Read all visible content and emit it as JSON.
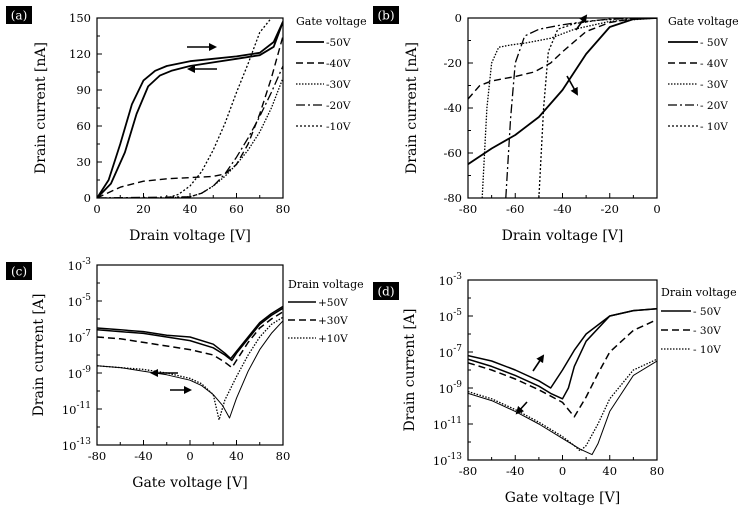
{
  "figure": {
    "panels": [
      "a",
      "b",
      "c",
      "d"
    ]
  },
  "chart_data": [
    {
      "id": "a",
      "type": "line",
      "label": "(a)",
      "xlabel": "Drain voltage [V]",
      "ylabel": "Drain current [nA]",
      "xlim": [
        0,
        80
      ],
      "ylim": [
        0,
        150
      ],
      "x_ticks": [
        0,
        20,
        40,
        60,
        80
      ],
      "y_ticks": [
        0,
        30,
        60,
        90,
        120,
        150
      ],
      "legend": {
        "title": "Gate voltage",
        "position": "right"
      },
      "scale": "linear",
      "series": [
        {
          "name": "-50V",
          "dash": "solid",
          "width": 1.8,
          "color": "#000000",
          "x": [
            0,
            5,
            10,
            15,
            20,
            25,
            30,
            40,
            50,
            60,
            70,
            76,
            80
          ],
          "y": [
            0,
            15,
            45,
            78,
            98,
            106,
            110,
            114,
            116,
            118,
            121,
            130,
            147
          ]
        },
        {
          "name": "-50V",
          "dash": "solid",
          "width": 1.8,
          "color": "#000000",
          "x": [
            0,
            6,
            12,
            17,
            22,
            27,
            32,
            40,
            50,
            60,
            70,
            76,
            80
          ],
          "y": [
            0,
            12,
            38,
            70,
            93,
            102,
            106,
            110,
            113,
            116,
            119,
            126,
            147
          ]
        },
        {
          "name": "-40V",
          "dash": "7,4",
          "width": 1.4,
          "color": "#000000",
          "x": [
            0,
            10,
            20,
            30,
            40,
            50,
            55,
            60,
            65,
            70,
            75,
            80
          ],
          "y": [
            0,
            9,
            14,
            16,
            17,
            18,
            20,
            28,
            45,
            70,
            100,
            135
          ]
        },
        {
          "name": "-30V",
          "dash": "1.5,1.5",
          "width": 1.3,
          "color": "#000000",
          "x": [
            0,
            30,
            40,
            45,
            50,
            55,
            60,
            65,
            70,
            75,
            80
          ],
          "y": [
            0,
            0,
            1,
            4,
            10,
            18,
            28,
            40,
            55,
            75,
            100
          ]
        },
        {
          "name": "-20V",
          "dash": "9,3,2,3",
          "width": 1.3,
          "color": "#000000",
          "x": [
            0,
            40,
            45,
            50,
            55,
            60,
            65,
            70,
            75,
            80
          ],
          "y": [
            0,
            1,
            4,
            10,
            20,
            34,
            50,
            68,
            88,
            110
          ]
        },
        {
          "name": "-10V",
          "dash": "2,2",
          "width": 1.3,
          "color": "#000000",
          "x": [
            0,
            30,
            35,
            40,
            45,
            50,
            55,
            60,
            65,
            70,
            75
          ],
          "y": [
            0,
            0,
            3,
            10,
            22,
            40,
            62,
            88,
            112,
            138,
            150
          ]
        }
      ]
    },
    {
      "id": "b",
      "type": "line",
      "label": "(b)",
      "xlabel": "Drain voltage [V]",
      "ylabel": "Drain current [nA]",
      "xlim": [
        -80,
        0
      ],
      "ylim": [
        -80,
        0
      ],
      "x_ticks": [
        -80,
        -60,
        -40,
        -20,
        0
      ],
      "y_ticks": [
        -80,
        -60,
        -40,
        -20,
        0
      ],
      "legend": {
        "title": "Gate voltage",
        "position": "right"
      },
      "scale": "linear",
      "series": [
        {
          "name": "- 50V",
          "dash": "solid",
          "width": 1.8,
          "color": "#000000",
          "x": [
            -80,
            -70,
            -60,
            -50,
            -40,
            -30,
            -20,
            -10,
            0
          ],
          "y": [
            -65,
            -58,
            -52,
            -44,
            -32,
            -16,
            -4,
            -0.5,
            0
          ]
        },
        {
          "name": "- 40V",
          "dash": "7,4",
          "width": 1.4,
          "color": "#000000",
          "x": [
            -80,
            -75,
            -70,
            -60,
            -52,
            -45,
            -40,
            -30,
            -20,
            -10,
            0
          ],
          "y": [
            -36,
            -30,
            -28,
            -26,
            -24,
            -20,
            -15,
            -6,
            -2,
            -0.3,
            0
          ]
        },
        {
          "name": "- 30V",
          "dash": "1.5,1.5",
          "width": 1.3,
          "color": "#000000",
          "x": [
            -74,
            -72,
            -70,
            -67,
            -62,
            -55,
            -45,
            -35,
            -20,
            0
          ],
          "y": [
            -80,
            -40,
            -20,
            -13,
            -12,
            -11,
            -9,
            -5,
            -1.5,
            0
          ]
        },
        {
          "name": "- 20V",
          "dash": "9,3,2,3",
          "width": 1.3,
          "color": "#000000",
          "x": [
            -64,
            -62,
            -60,
            -56,
            -50,
            -40,
            -30,
            -20,
            0
          ],
          "y": [
            -80,
            -45,
            -20,
            -8,
            -5,
            -3,
            -1.5,
            -0.5,
            0
          ]
        },
        {
          "name": "- 10V",
          "dash": "2,2",
          "width": 1.3,
          "color": "#000000",
          "x": [
            -50,
            -48,
            -46,
            -42,
            -35,
            -25,
            -15,
            0
          ],
          "y": [
            -80,
            -40,
            -15,
            -5,
            -2.5,
            -1,
            -0.3,
            0
          ]
        }
      ]
    },
    {
      "id": "c",
      "type": "line",
      "label": "(c)",
      "xlabel": "Gate voltage [V]",
      "ylabel": "Drain current [A]",
      "xlim": [
        -80,
        80
      ],
      "ylim": [
        -13,
        -3
      ],
      "x_ticks": [
        -80,
        -40,
        0,
        40,
        80
      ],
      "y_ticks": [
        -13,
        -11,
        -9,
        -7,
        -5,
        -3
      ],
      "scale": "log10",
      "legend": {
        "title": "Drain voltage",
        "position": "right"
      },
      "series": [
        {
          "name": "+50V",
          "dash": "solid",
          "width": 1.5,
          "color": "#000000",
          "x": [
            -80,
            -60,
            -40,
            -20,
            0,
            20,
            30,
            35,
            40,
            50,
            60,
            70,
            80
          ],
          "y": [
            -6.5,
            -6.6,
            -6.7,
            -6.9,
            -7.0,
            -7.4,
            -7.9,
            -8.2,
            -7.8,
            -7.0,
            -6.2,
            -5.7,
            -5.3
          ]
        },
        {
          "name": "+50V",
          "dash": "solid",
          "width": 1.5,
          "color": "#000000",
          "x": [
            -80,
            -60,
            -40,
            -20,
            0,
            20,
            30,
            36,
            40,
            50,
            60,
            70,
            80
          ],
          "y": [
            -6.6,
            -6.7,
            -6.8,
            -7.0,
            -7.2,
            -7.6,
            -8.0,
            -8.3,
            -7.9,
            -7.1,
            -6.3,
            -5.8,
            -5.4
          ]
        },
        {
          "name": "+30V",
          "dash": "7,4",
          "width": 1.5,
          "color": "#000000",
          "x": [
            -80,
            -60,
            -40,
            -20,
            0,
            20,
            30,
            36,
            40,
            50,
            60,
            70,
            80
          ],
          "y": [
            -7.0,
            -7.1,
            -7.3,
            -7.5,
            -7.7,
            -8.0,
            -8.4,
            -8.7,
            -8.3,
            -7.3,
            -6.5,
            -6.0,
            -5.6
          ]
        },
        {
          "name": "+10V",
          "dash": "1.5,1.5",
          "width": 1.3,
          "color": "#000000",
          "x": [
            -80,
            -60,
            -40,
            -20,
            0,
            10,
            20,
            25,
            30,
            40,
            50,
            60,
            70,
            80
          ],
          "y": [
            -8.6,
            -8.7,
            -8.8,
            -9.0,
            -9.3,
            -9.6,
            -10.2,
            -11.6,
            -10.5,
            -9.2,
            -8.0,
            -7.0,
            -6.3,
            -5.9
          ]
        },
        {
          "name": "+10V",
          "dash": "solid",
          "width": 1.0,
          "color": "#000000",
          "x": [
            -80,
            -60,
            -40,
            -20,
            0,
            10,
            20,
            28,
            34,
            40,
            50,
            60,
            70,
            80
          ],
          "y": [
            -8.6,
            -8.7,
            -8.9,
            -9.1,
            -9.4,
            -9.7,
            -10.2,
            -10.8,
            -11.5,
            -10.4,
            -8.9,
            -7.7,
            -6.8,
            -6.1
          ]
        }
      ]
    },
    {
      "id": "d",
      "type": "line",
      "label": "(d)",
      "xlabel": "Gate voltage [V]",
      "ylabel": "Drain current [A]",
      "xlim": [
        -80,
        80
      ],
      "ylim": [
        -13,
        -3
      ],
      "x_ticks": [
        -80,
        -40,
        0,
        40,
        80
      ],
      "y_ticks": [
        -13,
        -11,
        -9,
        -7,
        -5,
        -3
      ],
      "scale": "log10",
      "legend": {
        "title": "Drain voltage",
        "position": "right"
      },
      "series": [
        {
          "name": "- 50V",
          "dash": "solid",
          "width": 1.5,
          "color": "#000000",
          "x": [
            -80,
            -60,
            -40,
            -20,
            -10,
            0,
            10,
            20,
            40,
            60,
            80
          ],
          "y": [
            -7.2,
            -7.5,
            -8.0,
            -8.6,
            -9.0,
            -8.0,
            -6.9,
            -6.0,
            -5.0,
            -4.7,
            -4.6
          ]
        },
        {
          "name": "- 50V",
          "dash": "solid",
          "width": 1.5,
          "color": "#000000",
          "x": [
            -80,
            -60,
            -40,
            -20,
            -10,
            0,
            5,
            10,
            20,
            40,
            60,
            80
          ],
          "y": [
            -7.4,
            -7.8,
            -8.3,
            -8.9,
            -9.3,
            -9.6,
            -9.0,
            -7.8,
            -6.4,
            -5.0,
            -4.7,
            -4.6
          ]
        },
        {
          "name": "- 30V",
          "dash": "7,4",
          "width": 1.5,
          "color": "#000000",
          "x": [
            -80,
            -60,
            -40,
            -20,
            0,
            10,
            20,
            30,
            40,
            60,
            80
          ],
          "y": [
            -7.6,
            -8.0,
            -8.5,
            -9.1,
            -9.8,
            -10.6,
            -9.5,
            -8.2,
            -7.0,
            -5.8,
            -5.2
          ]
        },
        {
          "name": "- 10V",
          "dash": "1.5,1.5",
          "width": 1.3,
          "color": "#000000",
          "x": [
            -80,
            -60,
            -40,
            -20,
            0,
            10,
            15,
            20,
            30,
            40,
            60,
            80
          ],
          "y": [
            -9.2,
            -9.6,
            -10.2,
            -10.9,
            -11.7,
            -12.2,
            -12.5,
            -12.2,
            -11.0,
            -9.6,
            -8.0,
            -7.4
          ]
        },
        {
          "name": "- 10V",
          "dash": "solid",
          "width": 1.0,
          "color": "#000000",
          "x": [
            -80,
            -60,
            -40,
            -20,
            0,
            15,
            25,
            30,
            40,
            60,
            80
          ],
          "y": [
            -9.3,
            -9.7,
            -10.3,
            -11.0,
            -11.8,
            -12.4,
            -12.7,
            -12.1,
            -10.3,
            -8.3,
            -7.5
          ]
        }
      ]
    }
  ]
}
